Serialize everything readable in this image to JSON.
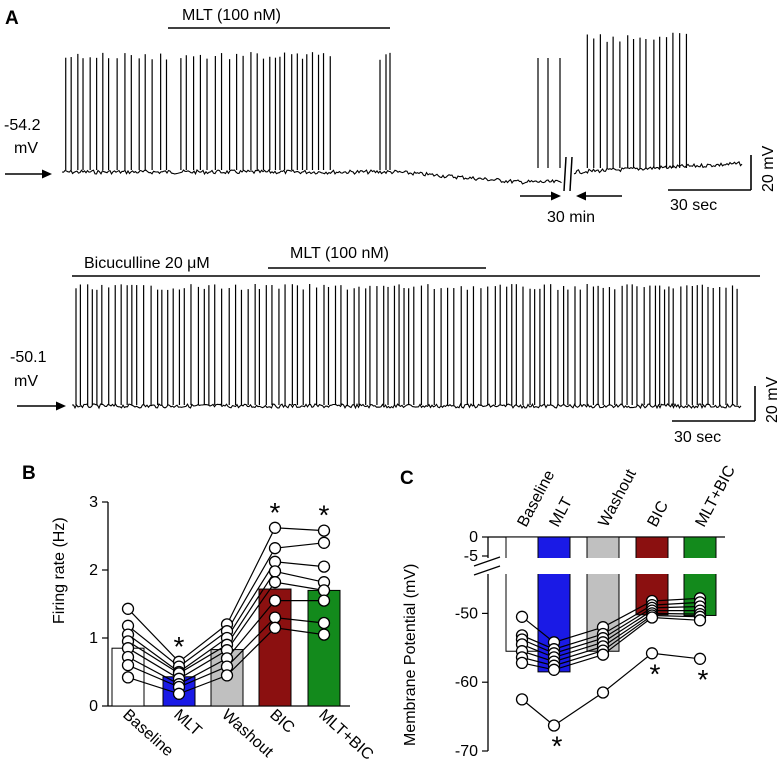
{
  "panel_a": {
    "label": "A",
    "top": {
      "drug_label": "MLT (100 nM)",
      "resting_value": "-54.2",
      "resting_unit": "mV",
      "gap_label": "30 min",
      "scale_y": "20 mV",
      "scale_x": "30 sec"
    },
    "bottom": {
      "bic_label": "Bicuculline 20 μM",
      "drug_label": "MLT (100 nM)",
      "resting_value": "-50.1",
      "resting_unit": "mV",
      "scale_y": "20 mV",
      "scale_x": "30 sec"
    }
  },
  "chart_data": [
    {
      "panel": "B",
      "type": "bar",
      "title": "",
      "ylabel": "Firing rate (Hz)",
      "xlabel": "",
      "ylim": [
        0,
        3
      ],
      "yticks": [
        "0",
        "1",
        "2",
        "3"
      ],
      "categories": [
        "Baseline",
        "MLT",
        "Washout",
        "BIC",
        "MLT+BIC"
      ],
      "values": [
        0.85,
        0.43,
        0.83,
        1.72,
        1.7
      ],
      "bar_colors": [
        "#ffffff",
        "#1a1ae6",
        "#c0c0c0",
        "#8b1010",
        "#138a1c"
      ],
      "significance": [
        "",
        "*",
        "",
        "*",
        "*"
      ],
      "individual": [
        [
          1.43,
          0.65,
          1.2,
          2.62,
          2.58
        ],
        [
          1.18,
          0.58,
          1.1,
          2.32,
          2.4
        ],
        [
          1.05,
          0.5,
          1.0,
          2.12,
          2.05
        ],
        [
          0.95,
          0.48,
          0.9,
          1.98,
          1.82
        ],
        [
          0.85,
          0.4,
          0.82,
          1.82,
          1.7
        ],
        [
          0.72,
          0.32,
          0.7,
          1.55,
          1.55
        ],
        [
          0.6,
          0.28,
          0.58,
          1.3,
          1.22
        ],
        [
          0.42,
          0.18,
          0.45,
          1.15,
          1.05
        ]
      ]
    },
    {
      "panel": "C",
      "type": "bar",
      "title": "",
      "ylabel": "Membrane Potential (mV)",
      "xlabel": "",
      "ylim": [
        -70,
        0
      ],
      "axis_break_between": [
        -45,
        -5
      ],
      "yticks": [
        "0",
        "-5",
        "-50",
        "-60",
        "-70"
      ],
      "categories": [
        "Baseline",
        "MLT",
        "Washout",
        "BIC",
        "MLT+BIC"
      ],
      "values": [
        -55.5,
        -58.5,
        -55.5,
        -50.2,
        -50.3
      ],
      "bar_colors": [
        "#ffffff",
        "#1a1ae6",
        "#c0c0c0",
        "#8b1010",
        "#138a1c"
      ],
      "significance": [
        "",
        "*",
        "",
        "*",
        "*"
      ],
      "individual": [
        [
          -50.5,
          -54.2,
          -52.0,
          -48.2,
          -47.8
        ],
        [
          -53.2,
          -55.2,
          -53.0,
          -48.8,
          -48.4
        ],
        [
          -53.8,
          -55.8,
          -53.6,
          -49.2,
          -49.0
        ],
        [
          -54.5,
          -56.4,
          -54.2,
          -49.6,
          -49.6
        ],
        [
          -55.5,
          -57.0,
          -54.8,
          -50.0,
          -50.1
        ],
        [
          -56.4,
          -57.6,
          -55.4,
          -50.3,
          -50.5
        ],
        [
          -57.2,
          -58.2,
          -56.0,
          -50.6,
          -51.0
        ],
        [
          -62.5,
          -66.3,
          -61.5,
          -55.8,
          -56.6
        ]
      ]
    }
  ]
}
